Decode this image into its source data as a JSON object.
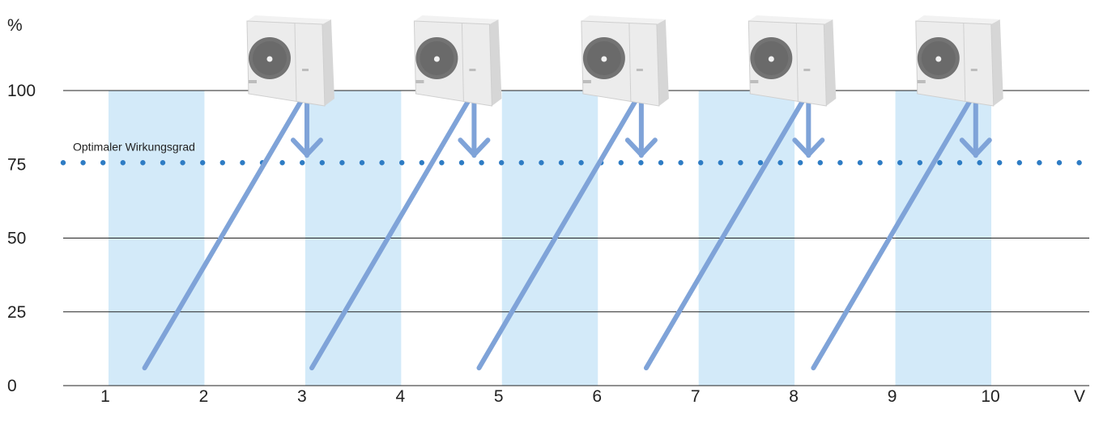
{
  "chart_data": {
    "type": "line",
    "ylabel": "%",
    "xunit": "V",
    "x_ticks": [
      "1",
      "2",
      "3",
      "4",
      "5",
      "6",
      "7",
      "8",
      "9",
      "10"
    ],
    "y_ticks": [
      "0",
      "25",
      "50",
      "75",
      "100"
    ],
    "xlim": [
      0.6,
      10.9
    ],
    "ylim": [
      0,
      100
    ],
    "grid": true,
    "shaded_bands": [
      [
        1,
        2
      ],
      [
        3,
        4
      ],
      [
        5,
        6
      ],
      [
        7,
        8
      ],
      [
        9,
        10
      ]
    ],
    "reference_line": {
      "label": "Optimaler Wirkungsgrad",
      "y": 75,
      "style": "dotted"
    },
    "series": [
      {
        "x": [
          1.4,
          3.0
        ],
        "y": [
          6,
          97
        ]
      },
      {
        "x": [
          3.1,
          4.7
        ],
        "y": [
          6,
          97
        ]
      },
      {
        "x": [
          4.8,
          6.4
        ],
        "y": [
          6,
          97
        ]
      },
      {
        "x": [
          6.5,
          8.1
        ],
        "y": [
          6,
          97
        ]
      },
      {
        "x": [
          8.2,
          9.8
        ],
        "y": [
          6,
          97
        ]
      }
    ],
    "arrows": [
      {
        "x": 3.05,
        "y_from": 97,
        "y_to": 78
      },
      {
        "x": 4.75,
        "y_from": 97,
        "y_to": 78
      },
      {
        "x": 6.45,
        "y_from": 97,
        "y_to": 78
      },
      {
        "x": 8.15,
        "y_from": 97,
        "y_to": 78
      },
      {
        "x": 9.85,
        "y_from": 97,
        "y_to": 78
      }
    ],
    "units_icon": "outdoor-heat-pump-unit-icon",
    "colors": {
      "band": "#d3eaf9",
      "line": "#7fa3d8",
      "dots": "#2e7cc4",
      "grid": "#222222"
    }
  }
}
